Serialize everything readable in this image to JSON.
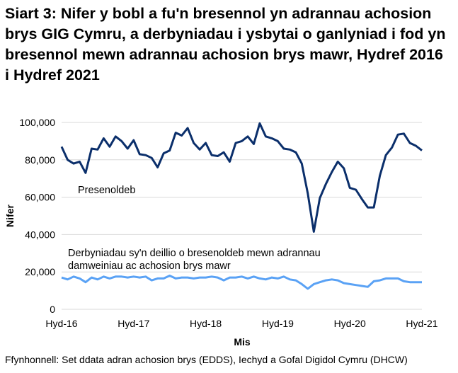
{
  "chart_data": {
    "type": "line",
    "title": "Siart 3: Nifer y bobl a fu'n bresennol yn adrannau achosion brys GIG Cymru, a derbyniadau i ysbytai o ganlyniad i fod yn bresennol mewn adrannau achosion brys mawr, Hydref 2016 i Hydref 2021",
    "xlabel": "Mis",
    "ylabel": "Nifer",
    "ylim": [
      0,
      100000
    ],
    "yticks": [
      "0",
      "20,000",
      "40,000",
      "60,000",
      "80,000",
      "100,000"
    ],
    "xtick_labels": [
      "Hyd-16",
      "Hyd-17",
      "Hyd-18",
      "Hyd-19",
      "Hyd-20",
      "Hyd-21"
    ],
    "x_range": [
      "2016-10",
      "2021-10"
    ],
    "grid": "horizontal",
    "series": [
      {
        "name": "Presenoldeb",
        "color": "#0b2f6b",
        "values": [
          87000,
          80000,
          78000,
          79000,
          73000,
          86000,
          85500,
          91500,
          87000,
          92500,
          90000,
          86000,
          90500,
          83000,
          82500,
          81000,
          76000,
          83500,
          85000,
          94500,
          93000,
          97000,
          89000,
          85500,
          89000,
          82500,
          82000,
          84000,
          79000,
          89000,
          90000,
          92500,
          88500,
          99500,
          92500,
          91500,
          90000,
          86000,
          85500,
          84000,
          78000,
          62000,
          41500,
          59500,
          67000,
          73500,
          79000,
          75500,
          65000,
          64000,
          59000,
          54500,
          54500,
          71500,
          82500,
          86500,
          93500,
          94000,
          89000,
          87500,
          85000
        ]
      },
      {
        "name": "Derbyniadau sy'n deillio o bresenoldeb mewn adrannau damweiniau ac achosion brys mawr",
        "color": "#5aa2f5",
        "values": [
          17000,
          16000,
          17500,
          16500,
          14500,
          17000,
          16000,
          17500,
          16500,
          17500,
          17500,
          17000,
          17500,
          17000,
          17500,
          15500,
          16500,
          16500,
          18000,
          16500,
          17000,
          17000,
          16500,
          17000,
          17000,
          17500,
          17000,
          15500,
          17000,
          17000,
          17500,
          16500,
          17500,
          16500,
          16000,
          17000,
          16500,
          17500,
          16000,
          15500,
          13500,
          11000,
          13500,
          14500,
          15500,
          16000,
          15500,
          14000,
          13500,
          13000,
          12500,
          12000,
          15000,
          15500,
          16500,
          16500,
          16500,
          15000,
          14500,
          14500,
          14500
        ]
      }
    ],
    "series_labels": [
      "Presenoldeb",
      "Derbyniadau sy'n deillio o bresenoldeb mewn adrannau",
      "damweiniau ac achosion brys mawr"
    ]
  },
  "source": "Ffynhonnell: Set ddata adran achosion brys (EDDS), Iechyd a Gofal Digidol Cymru (DHCW)"
}
